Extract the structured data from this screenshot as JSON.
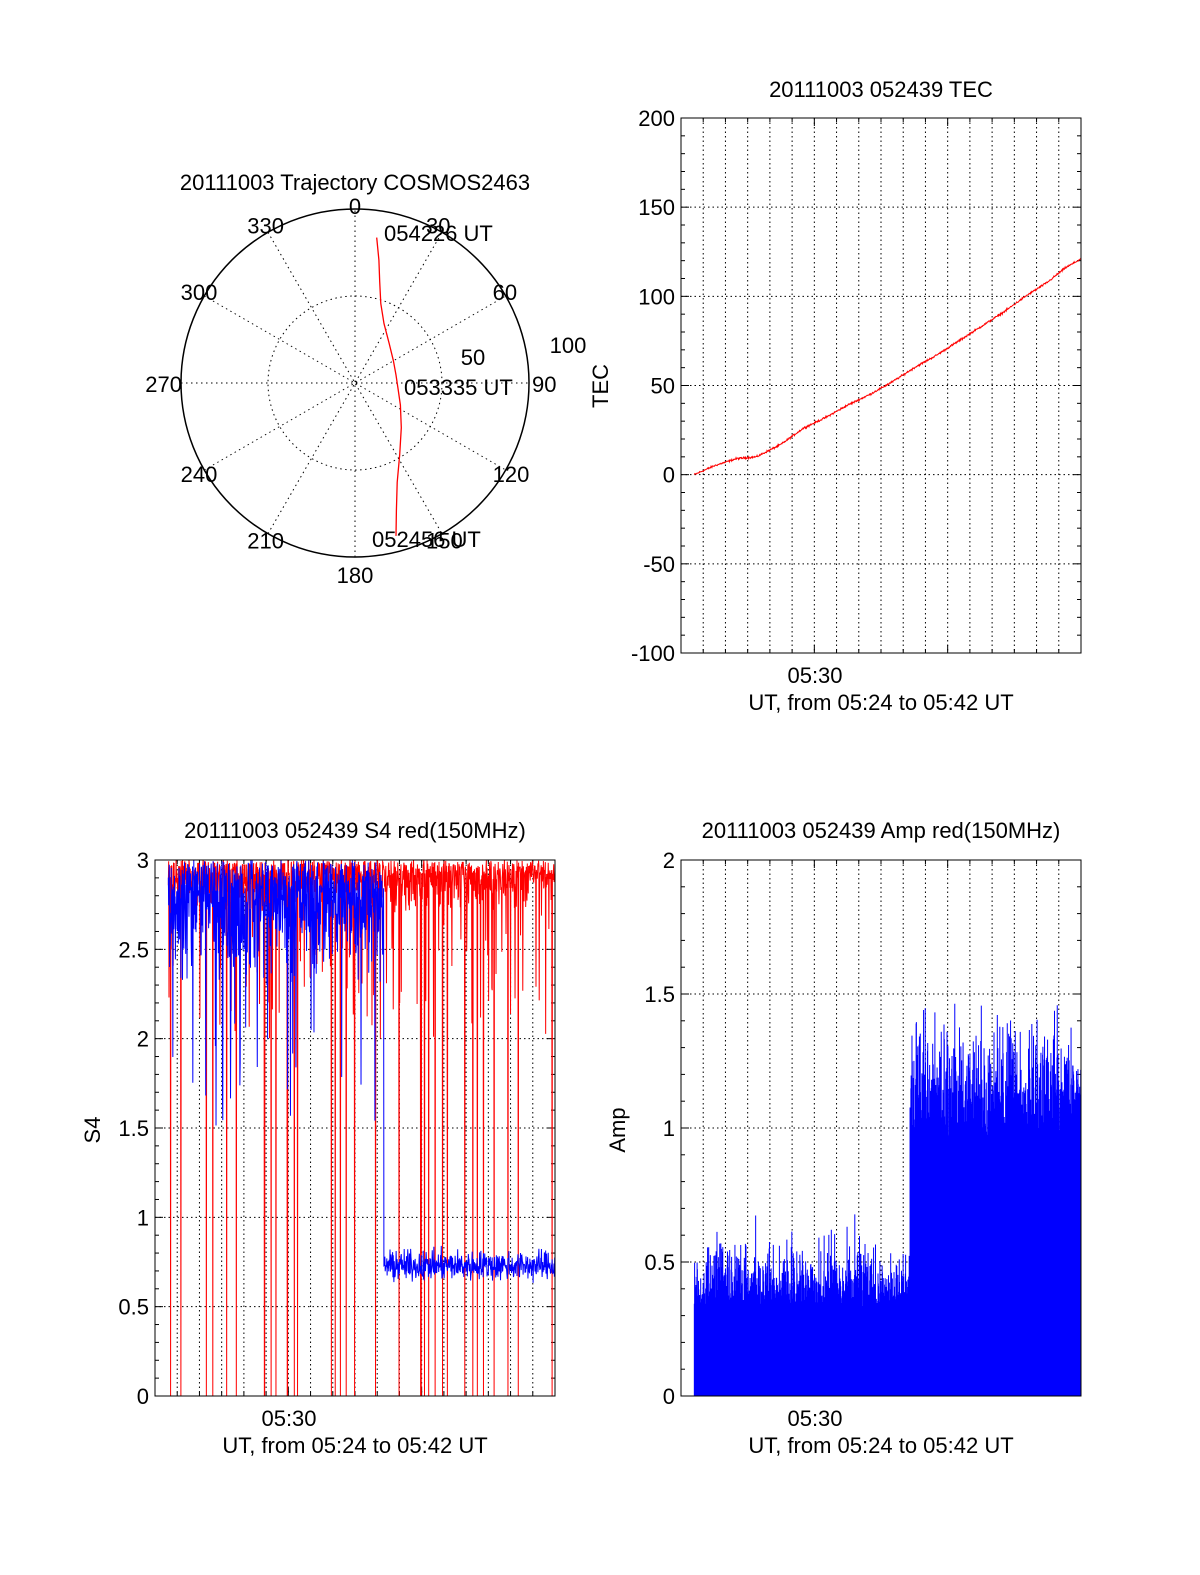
{
  "colors": {
    "red": "#ff0000",
    "blue": "#0000ff",
    "axis": "#000000",
    "grid": "#000000"
  },
  "chart_data": [
    {
      "id": "trajectory",
      "type": "polar",
      "title": "20111003 Trajectory COSMOS2463",
      "angle_labels": [
        "0",
        "30",
        "60",
        "90",
        "120",
        "150",
        "180",
        "210",
        "240",
        "270",
        "300",
        "330"
      ],
      "radius_labels": [
        "50",
        "100"
      ],
      "radius_max": 100,
      "grid": true,
      "track": {
        "points_deg_r": [
          [
            8.5,
            84.5
          ],
          [
            11,
            72
          ],
          [
            13.7,
            60
          ],
          [
            18,
            48
          ],
          [
            26,
            38
          ],
          [
            41,
            30
          ],
          [
            60,
            25.5
          ],
          [
            79,
            24
          ],
          [
            98,
            25
          ],
          [
            116,
            29
          ],
          [
            134,
            37
          ],
          [
            148,
            48.5
          ],
          [
            157,
            62
          ],
          [
            162,
            77
          ],
          [
            165,
            91
          ]
        ],
        "labels": [
          {
            "text": "054226 UT",
            "angle_deg": 8.5,
            "radius": 84.5
          },
          {
            "text": "053335 UT",
            "angle_deg": 84,
            "radius": 24
          },
          {
            "text": "052456 UT",
            "angle_deg": 165,
            "radius": 91
          }
        ]
      }
    },
    {
      "id": "tec",
      "type": "line",
      "title": "20111003 052439 TEC",
      "ylabel": "TEC",
      "xlabel": "UT, from 05:24 to 05:42 UT",
      "xlim_min": [
        24.0,
        42.0
      ],
      "ylim": [
        -100,
        200
      ],
      "yticks": [
        "200",
        "150",
        "100",
        "50",
        "0",
        "-50",
        "-100"
      ],
      "xtick_labels": [
        "05:30"
      ],
      "x_start_min": 24.6,
      "x_end_min": 42.0,
      "trend": [
        [
          24.6,
          0
        ],
        [
          25.5,
          5
        ],
        [
          26.5,
          9
        ],
        [
          27.4,
          10
        ],
        [
          28.5,
          17
        ],
        [
          29.5,
          26
        ],
        [
          30.5,
          32
        ],
        [
          31.5,
          39
        ],
        [
          32.5,
          45
        ],
        [
          33.5,
          52
        ],
        [
          34.5,
          60
        ],
        [
          35.5,
          67
        ],
        [
          36.5,
          75
        ],
        [
          37.5,
          83
        ],
        [
          38.5,
          91
        ],
        [
          39.5,
          100
        ],
        [
          40.5,
          108
        ],
        [
          41.3,
          116
        ],
        [
          42.0,
          121
        ]
      ],
      "grid": true
    },
    {
      "id": "s4",
      "type": "line",
      "title": "20111003 052439 S4 red(150MHz)",
      "ylabel": "S4",
      "xlabel": "UT, from 05:24 to 05:42 UT",
      "xlim_min": [
        24.0,
        42.0
      ],
      "ylim": [
        0,
        3
      ],
      "yticks": [
        "3",
        "2.5",
        "2",
        "1.5",
        "1",
        "0.5",
        "0"
      ],
      "xtick_labels": [
        "05:30"
      ],
      "blue_series": {
        "x_start_min": 24.6,
        "x_change_min": 34.3,
        "x_end_min": 42.0,
        "before_level": 2.6,
        "after_level": 0.73
      },
      "red_series": {
        "x_start_min": 24.6,
        "x_end_min": 42.0,
        "typical_level": 2.85
      },
      "grid": true
    },
    {
      "id": "amp",
      "type": "bar",
      "title": "20111003 052439 Amp red(150MHz)",
      "ylabel": "Amp",
      "xlabel": "UT, from 05:24 to 05:42 UT",
      "xlim_min": [
        24.0,
        42.0
      ],
      "ylim": [
        0,
        2
      ],
      "yticks": [
        "2",
        "1.5",
        "1",
        "0.5",
        "0"
      ],
      "xtick_labels": [
        "05:30"
      ],
      "blue_series": {
        "x_start_min": 24.6,
        "x_change_min": 34.3,
        "x_end_min": 42.0,
        "before_level": 0.3,
        "after_level": 0.95
      },
      "grid": true
    }
  ]
}
